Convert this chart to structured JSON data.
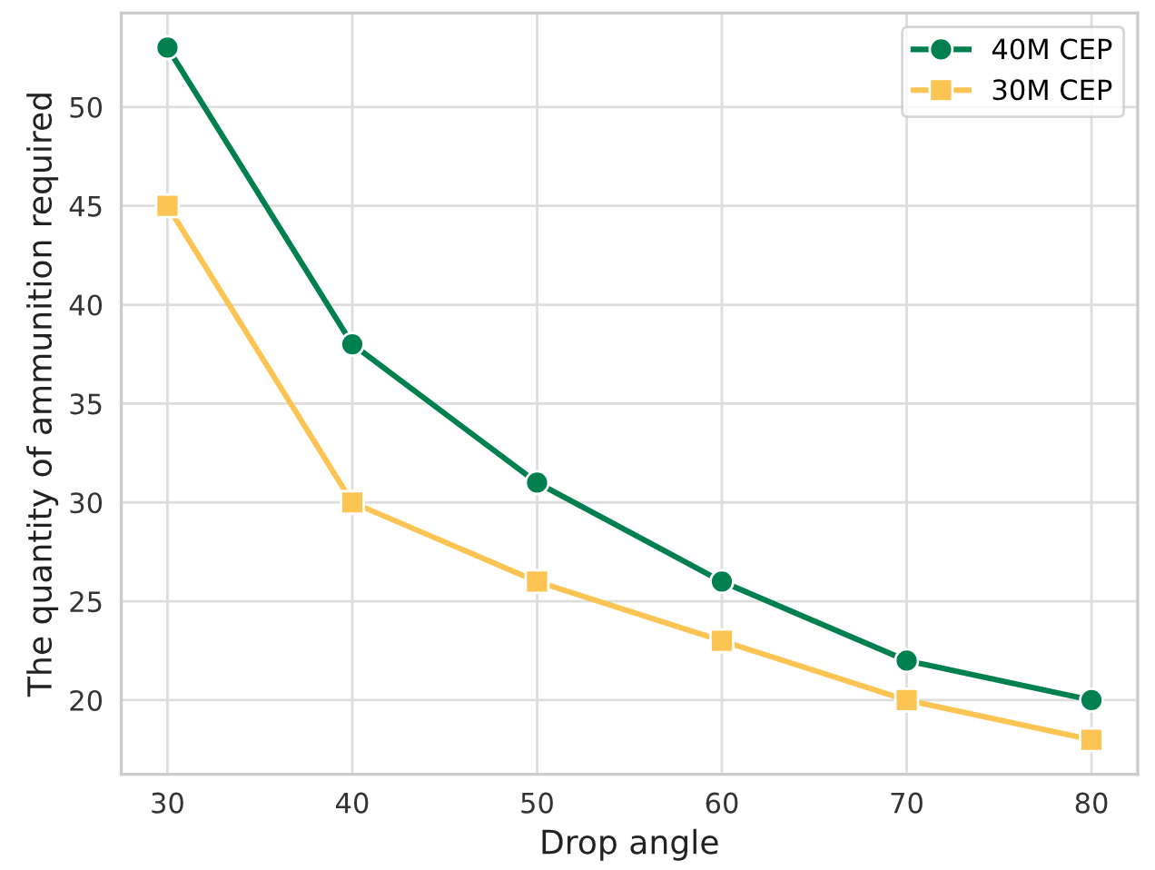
{
  "chart_data": {
    "type": "line",
    "xlabel": "Drop angle",
    "ylabel": "The quantity of ammunition required",
    "x": [
      30,
      40,
      50,
      60,
      70,
      80
    ],
    "series": [
      {
        "name": "40M CEP",
        "color": "#00804f",
        "marker": "circle",
        "values": [
          53,
          38,
          31,
          26,
          22,
          20
        ]
      },
      {
        "name": "30M CEP",
        "color": "#fbc453",
        "marker": "square",
        "values": [
          45,
          30,
          26,
          23,
          20,
          18
        ]
      }
    ],
    "xlim": [
      27.5,
      82.5
    ],
    "xticks": [
      30,
      40,
      50,
      60,
      70,
      80
    ],
    "ylim": [
      16.25,
      54.75
    ],
    "yticks": [
      20,
      25,
      30,
      35,
      40,
      45,
      50
    ],
    "grid": true,
    "legend": "top right",
    "line_style": "solid"
  }
}
